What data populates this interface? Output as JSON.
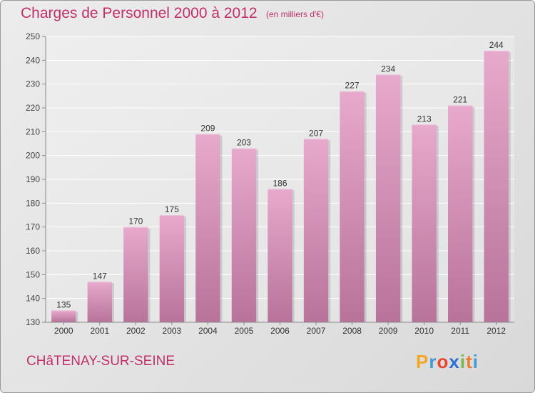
{
  "header": {
    "title": "Charges de Personnel 2000 à 2012",
    "subtitle": "(en milliers d'€)"
  },
  "footer": {
    "commune": "CHâTENAY-SUR-SEINE",
    "logo_letters": [
      "P",
      "r",
      "o",
      "x",
      "i",
      "t",
      "i"
    ],
    "logo_colors": [
      "#f5a623",
      "#3d9bd8",
      "#e8462e",
      "#2e6fd8",
      "#7ab648",
      "#f07b2a",
      "#3d9bd8"
    ]
  },
  "chart_data": {
    "type": "bar",
    "title": "Charges de Personnel 2000 à 2012",
    "subtitle": "(en milliers d'€)",
    "categories": [
      "2000",
      "2001",
      "2002",
      "2003",
      "2004",
      "2005",
      "2006",
      "2007",
      "2008",
      "2009",
      "2010",
      "2011",
      "2012"
    ],
    "values": [
      135,
      147,
      170,
      175,
      209,
      203,
      186,
      207,
      227,
      234,
      213,
      221,
      244
    ],
    "ylim": [
      130,
      250
    ],
    "yticks": [
      130,
      140,
      150,
      160,
      170,
      180,
      190,
      200,
      210,
      220,
      230,
      240,
      250
    ],
    "grid": true,
    "bar_color": "#d98fb8",
    "bar_color_light": "#e7a9cc",
    "bar_color_dark": "#b8739a"
  }
}
